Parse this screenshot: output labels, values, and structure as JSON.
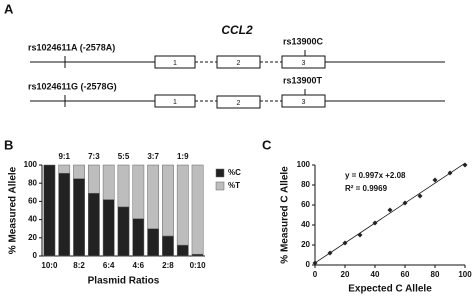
{
  "panel_labels": [
    "A",
    "B",
    "C"
  ],
  "gene_diagram": {
    "title": "CCL2",
    "rows": [
      {
        "left_snp": "rs1024611A (-2578A)",
        "right_snp": "rs13900C",
        "exons": [
          "1",
          "2",
          "3"
        ]
      },
      {
        "left_snp": "rs1024611G (-2578G)",
        "right_snp": "rs13900T",
        "exons": [
          "1",
          "2",
          "3"
        ]
      }
    ]
  },
  "chart_data": [
    {
      "type": "stacked_bar",
      "xlabel": "Plasmid Ratios",
      "ylabel": "% Measured Allele",
      "categories": [
        "10:0",
        null,
        "8:2",
        null,
        "6:4",
        null,
        "4:6",
        null,
        "2:8",
        null,
        "0:10"
      ],
      "top_labels": [
        null,
        "9:1",
        null,
        "7:3",
        null,
        "5:5",
        null,
        "3:7",
        null,
        "1:9",
        null
      ],
      "series": [
        {
          "name": "%C",
          "color": "#222222",
          "values": [
            100,
            91,
            85,
            69,
            62,
            54,
            41,
            30,
            22,
            12,
            2
          ]
        },
        {
          "name": "%T",
          "color": "#bdbdbd",
          "values": [
            0,
            9,
            15,
            31,
            38,
            46,
            59,
            70,
            78,
            88,
            98
          ]
        }
      ],
      "ylim": [
        0,
        100
      ],
      "yticks": [
        0,
        20,
        40,
        60,
        80,
        100
      ],
      "legend": "right"
    },
    {
      "type": "scatter",
      "xlabel": "Expected C Allele",
      "ylabel": "% Measured C Allele",
      "x": [
        0,
        10,
        20,
        30,
        40,
        50,
        60,
        70,
        80,
        90,
        100
      ],
      "values": [
        2,
        12,
        22,
        30,
        42,
        55,
        62,
        69,
        85,
        92,
        100
      ],
      "color": "#222222",
      "trendline": {
        "slope": 0.997,
        "intercept": 2.08
      },
      "annotations": [
        "y = 0.997x +2.08",
        "R² = 0.9969"
      ],
      "xlim": [
        0,
        100
      ],
      "xticks": [
        0,
        20,
        40,
        60,
        80,
        100
      ],
      "ylim": [
        0,
        100
      ],
      "yticks": [
        0,
        20,
        40,
        60,
        80,
        100
      ]
    }
  ]
}
